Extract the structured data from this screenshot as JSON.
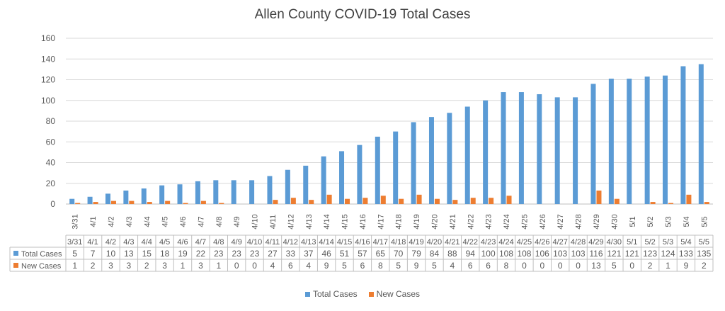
{
  "chart_data": {
    "type": "bar",
    "title": "Allen County COVID-19 Total Cases",
    "categories": [
      "3/31",
      "4/1",
      "4/2",
      "4/3",
      "4/4",
      "4/5",
      "4/6",
      "4/7",
      "4/8",
      "4/9",
      "4/10",
      "4/11",
      "4/12",
      "4/13",
      "4/14",
      "4/15",
      "4/16",
      "4/17",
      "4/18",
      "4/19",
      "4/20",
      "4/21",
      "4/22",
      "4/23",
      "4/24",
      "4/25",
      "4/26",
      "4/27",
      "4/28",
      "4/29",
      "4/30",
      "5/1",
      "5/2",
      "5/3",
      "5/4",
      "5/5"
    ],
    "series": [
      {
        "name": "Total Cases",
        "color": "#5B9BD5",
        "values": [
          5,
          7,
          10,
          13,
          15,
          18,
          19,
          22,
          23,
          23,
          23,
          27,
          33,
          37,
          46,
          51,
          57,
          65,
          70,
          79,
          84,
          88,
          94,
          100,
          108,
          108,
          106,
          103,
          103,
          116,
          121,
          121,
          123,
          124,
          133,
          135
        ]
      },
      {
        "name": "New Cases",
        "color": "#ED7D31",
        "values": [
          1,
          2,
          3,
          3,
          2,
          3,
          1,
          3,
          1,
          0,
          0,
          4,
          6,
          4,
          9,
          5,
          6,
          8,
          5,
          9,
          5,
          4,
          6,
          6,
          8,
          0,
          0,
          0,
          0,
          13,
          5,
          0,
          2,
          1,
          9,
          2
        ]
      }
    ],
    "ylim": [
      0,
      160
    ],
    "yticks": [
      0,
      20,
      40,
      60,
      80,
      100,
      120,
      140,
      160
    ],
    "grid": true,
    "legend_position": "bottom",
    "data_table": true
  }
}
